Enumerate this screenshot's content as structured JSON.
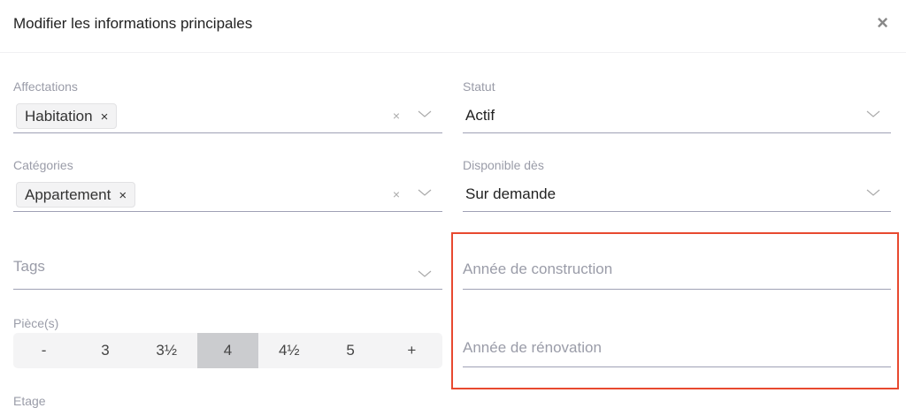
{
  "header": {
    "title": "Modifier les informations principales",
    "close_icon": "close-icon"
  },
  "affectations": {
    "label": "Affectations",
    "chips": [
      "Habitation"
    ]
  },
  "categories": {
    "label": "Catégories",
    "chips": [
      "Appartement"
    ]
  },
  "tags": {
    "placeholder": "Tags"
  },
  "pieces": {
    "label": "Pièce(s)",
    "options": [
      "-",
      "3",
      "3½",
      "4",
      "4½",
      "5",
      "+"
    ],
    "selected": "4"
  },
  "etage": {
    "label": "Etage"
  },
  "statut": {
    "label": "Statut",
    "value": "Actif"
  },
  "disponible": {
    "label": "Disponible dès",
    "value": "Sur demande"
  },
  "annee_construction": {
    "placeholder": "Année de construction"
  },
  "annee_renovation": {
    "placeholder": "Année de rénovation"
  },
  "colors": {
    "highlight": "#e8492f",
    "selected_segment": "#cbcccf"
  },
  "icons": {
    "remove": "×",
    "clear": "×"
  }
}
